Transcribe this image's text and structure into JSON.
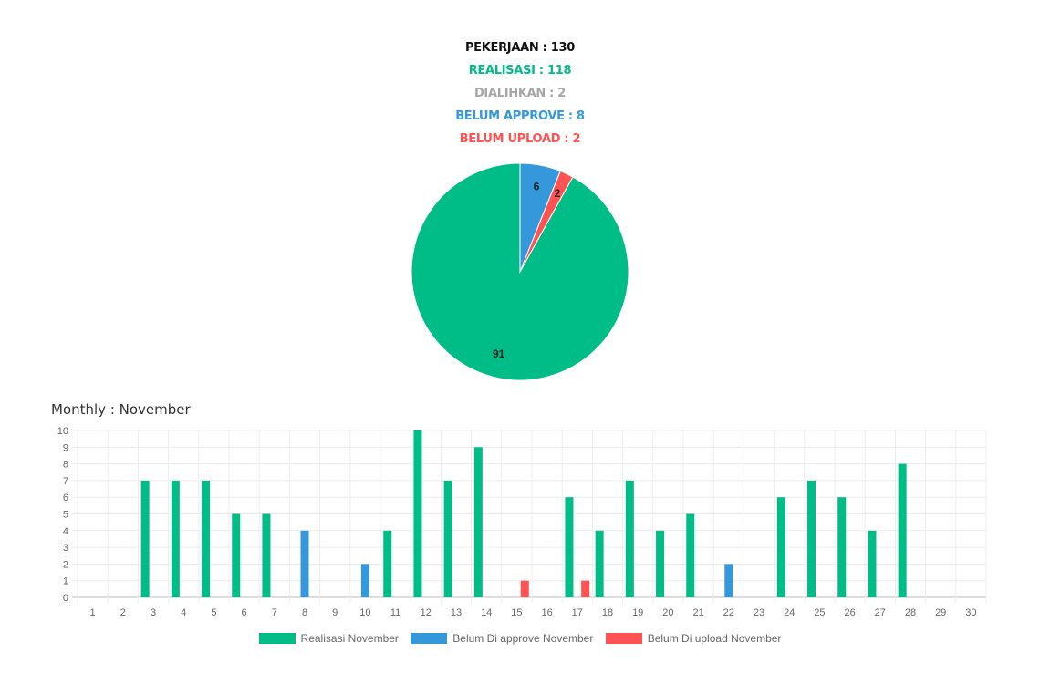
{
  "summary": {
    "pekerjaan": "PEKERJAAN : 130",
    "realisasi": "REALISASI : 118",
    "dialihkan": "DIALIHKAN : 2",
    "belum_approve": "BELUM APPROVE : 8",
    "belum_upload": "BELUM UPLOAD : 2"
  },
  "colors": {
    "green": "#00bc87",
    "blue": "#3498db",
    "red": "#ff5252",
    "grey": "#a6a6a6",
    "black": "#111111"
  },
  "chart_data": [
    {
      "type": "pie",
      "labels": [
        "Realisasi",
        "Belum Approve",
        "Belum Upload"
      ],
      "values": [
        91,
        6,
        2
      ],
      "colors": [
        "#00bc87",
        "#3498db",
        "#ff5252"
      ]
    },
    {
      "type": "bar",
      "title": "Monthly : November",
      "categories": [
        "1",
        "2",
        "3",
        "4",
        "5",
        "6",
        "7",
        "8",
        "9",
        "10",
        "11",
        "12",
        "13",
        "14",
        "15",
        "16",
        "17",
        "18",
        "19",
        "20",
        "21",
        "22",
        "23",
        "24",
        "25",
        "26",
        "27",
        "28",
        "29",
        "30"
      ],
      "series": [
        {
          "name": "Realisasi November",
          "color": "#00bc87",
          "values": [
            0,
            0,
            7,
            7,
            7,
            5,
            5,
            0,
            0,
            0,
            4,
            10,
            7,
            9,
            0,
            0,
            6,
            4,
            7,
            4,
            5,
            0,
            0,
            6,
            7,
            6,
            4,
            8,
            0,
            0
          ]
        },
        {
          "name": "Belum Di approve November",
          "color": "#3498db",
          "values": [
            0,
            0,
            0,
            0,
            0,
            0,
            0,
            4,
            0,
            2,
            0,
            0,
            0,
            0,
            0,
            0,
            0,
            0,
            0,
            0,
            0,
            2,
            0,
            0,
            0,
            0,
            0,
            0,
            0,
            0
          ]
        },
        {
          "name": "Belum Di upload November",
          "color": "#ff5252",
          "values": [
            0,
            0,
            0,
            0,
            0,
            0,
            0,
            0,
            0,
            0,
            0,
            0,
            0,
            0,
            1,
            0,
            1,
            0,
            0,
            0,
            0,
            0,
            0,
            0,
            0,
            0,
            0,
            0,
            0,
            0
          ]
        }
      ],
      "ylim": [
        0,
        10
      ],
      "yticks": [
        "0",
        "1",
        "2",
        "3",
        "4",
        "5",
        "6",
        "7",
        "8",
        "9",
        "10"
      ],
      "grid": true,
      "legend": "bottom"
    }
  ]
}
